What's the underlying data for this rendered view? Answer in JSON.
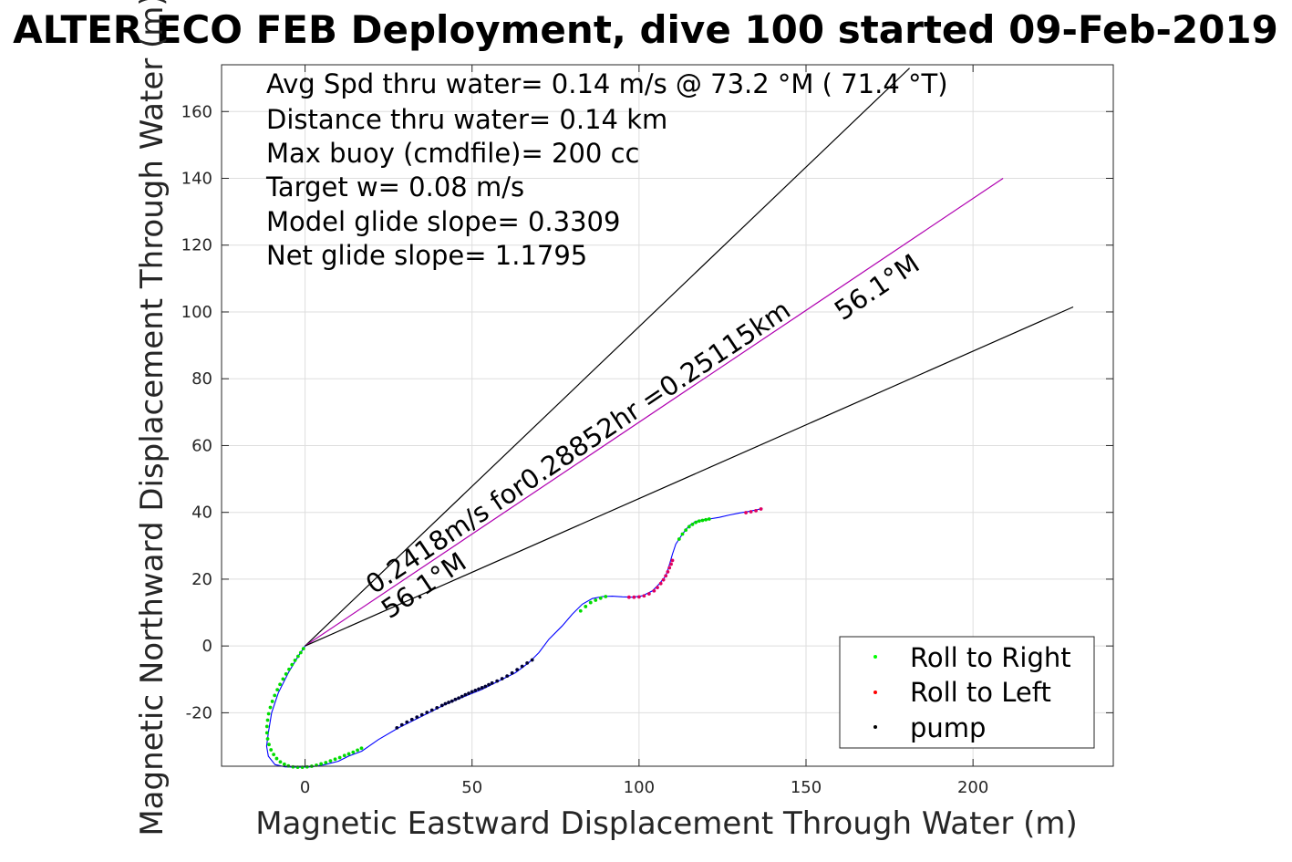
{
  "chart_data": {
    "type": "line",
    "title": "ALTER ECO FEB Deployment, dive 100 started 09-Feb-2019",
    "xlabel": "Magnetic Eastward Displacement Through Water (m)",
    "ylabel": "Magnetic Northward Displacement Through Water (m)",
    "xlim": [
      -25,
      242
    ],
    "ylim": [
      -36,
      174
    ],
    "xticks": [
      0,
      50,
      100,
      150,
      200
    ],
    "xtick_labels": [
      "0",
      "50",
      "100",
      "150",
      "200"
    ],
    "yticks": [
      -20,
      0,
      20,
      40,
      60,
      80,
      100,
      120,
      140,
      160
    ],
    "ytick_labels": [
      "-20",
      "0",
      "20",
      "40",
      "60",
      "80",
      "100",
      "120",
      "140",
      "160"
    ],
    "grid": true,
    "legend_position": "bottom-right",
    "annotations": [
      "Avg Spd thru water=  0.14 m/s @  73.2 °M ( 71.4 °T)",
      "Distance thru water=  0.14 km",
      "Max buoy (cmdfile)= 200 cc",
      "Target w= 0.08 m/s",
      "Model glide slope= 0.3309",
      "Net glide slope= 1.1795"
    ],
    "current_label": "0.2418m/s for0.28852hr =0.25115km",
    "heading_labels": [
      "56.1°M",
      "56.1°M"
    ],
    "legend": [
      {
        "label": "Roll to Right",
        "color": "#00ff00"
      },
      {
        "label": "Roll to Left",
        "color": "#ff0000"
      },
      {
        "label": "pump",
        "color": "#000000"
      }
    ],
    "reference_lines": [
      {
        "name": "heading-plus",
        "color": "#000000",
        "x": [
          0,
          181
        ],
        "y": [
          0,
          173
        ]
      },
      {
        "name": "current",
        "color": "#b000b0",
        "x": [
          0,
          209
        ],
        "y": [
          0,
          140
        ]
      },
      {
        "name": "heading-minus",
        "color": "#000000",
        "x": [
          0,
          230
        ],
        "y": [
          0,
          101.5
        ]
      }
    ],
    "track": {
      "color": "#0000ff",
      "x": [
        0,
        -2,
        -5,
        -8,
        -10,
        -11,
        -11.5,
        -11,
        -9,
        -6,
        -2,
        2,
        6,
        10,
        13,
        17,
        22,
        28,
        35,
        42,
        48,
        53,
        58,
        63,
        67,
        70,
        73,
        77,
        80,
        83,
        86,
        89,
        92,
        95,
        98,
        101,
        104,
        106,
        108,
        109,
        110,
        111,
        113,
        115,
        117,
        119,
        121,
        124,
        127,
        130,
        133,
        135,
        137
      ],
      "y": [
        0,
        -3,
        -8,
        -14,
        -20,
        -26,
        -30,
        -33,
        -35.5,
        -36.2,
        -36.3,
        -36.2,
        -35.5,
        -34.5,
        -33,
        -31.5,
        -28,
        -24.5,
        -21,
        -17.5,
        -15,
        -13,
        -10.5,
        -8,
        -5,
        -2,
        2,
        6,
        9.5,
        12.5,
        14.2,
        14.8,
        14.9,
        14.7,
        14.6,
        15,
        16.5,
        18.5,
        21,
        24,
        27.5,
        30.5,
        33.5,
        36,
        37.3,
        37.8,
        38,
        38.5,
        39.2,
        39.8,
        40.3,
        40.7,
        41.2
      ]
    },
    "points": {
      "roll_right": {
        "x": [
          -0.5,
          -1.3,
          -2.1,
          -3,
          -3.9,
          -4.8,
          -5.7,
          -6.6,
          -7.5,
          -8.3,
          -9.1,
          -9.8,
          -10.4,
          -10.9,
          -11.2,
          -11.4,
          -11.4,
          -11.2,
          -10.8,
          -10.2,
          -9.4,
          -8.5,
          -7.4,
          -6.2,
          -5,
          -3.6,
          -2.2,
          -0.8,
          0.6,
          2,
          3.4,
          4.8,
          6.2,
          7.6,
          9,
          10.4,
          11.8,
          13.1,
          14.4,
          15.7,
          16.9,
          82.5,
          84,
          85.5,
          87,
          88.5,
          90,
          112,
          113,
          114,
          115,
          116,
          117,
          118,
          119,
          120,
          121
        ],
        "y": [
          -0.8,
          -2,
          -3.1,
          -4.3,
          -5.6,
          -7,
          -8.4,
          -9.9,
          -11.5,
          -13.1,
          -14.8,
          -16.6,
          -18.4,
          -20.3,
          -22.2,
          -24.1,
          -26,
          -27.8,
          -29.5,
          -31.1,
          -32.5,
          -33.7,
          -34.7,
          -35.4,
          -35.9,
          -36.2,
          -36.3,
          -36.3,
          -36.2,
          -36,
          -35.7,
          -35.3,
          -34.9,
          -34.4,
          -33.9,
          -33.4,
          -32.8,
          -32.3,
          -31.8,
          -31.2,
          -30.6,
          10.5,
          11.8,
          13,
          13.7,
          14.3,
          14.8,
          32,
          33.5,
          34.7,
          35.7,
          36.4,
          37,
          37.4,
          37.6,
          37.8,
          38
        ]
      },
      "roll_left": {
        "x": [
          97,
          98.5,
          100,
          101.5,
          103,
          104.5,
          105.5,
          106.5,
          107.3,
          108,
          108.6,
          109.1,
          109.6,
          110,
          132,
          133.5,
          135,
          136.5
        ],
        "y": [
          14.6,
          14.6,
          14.7,
          15,
          15.6,
          16.5,
          17.5,
          18.7,
          19.8,
          21,
          22.2,
          23.4,
          24.5,
          25.6,
          39.9,
          40.2,
          40.5,
          41
        ]
      },
      "pump": {
        "x": [
          27.5,
          29,
          30.5,
          32,
          33.5,
          35,
          36.5,
          38,
          39.5,
          41,
          42,
          43,
          44,
          45,
          46,
          47,
          48,
          49,
          50,
          51,
          52,
          53,
          54,
          55,
          56,
          57.5,
          59,
          60.5,
          62,
          63.5,
          65,
          66.5,
          68
        ],
        "y": [
          -24.5,
          -23.6,
          -22.8,
          -22,
          -21.3,
          -20.6,
          -19.9,
          -19.2,
          -18.5,
          -17.8,
          -17.3,
          -16.9,
          -16.5,
          -16,
          -15.6,
          -15.1,
          -14.6,
          -14.2,
          -13.7,
          -13.3,
          -12.9,
          -12.5,
          -12.1,
          -11.6,
          -11.1,
          -10.5,
          -9.8,
          -9,
          -8.1,
          -7.1,
          -6.1,
          -5.1,
          -4.2
        ]
      }
    }
  }
}
